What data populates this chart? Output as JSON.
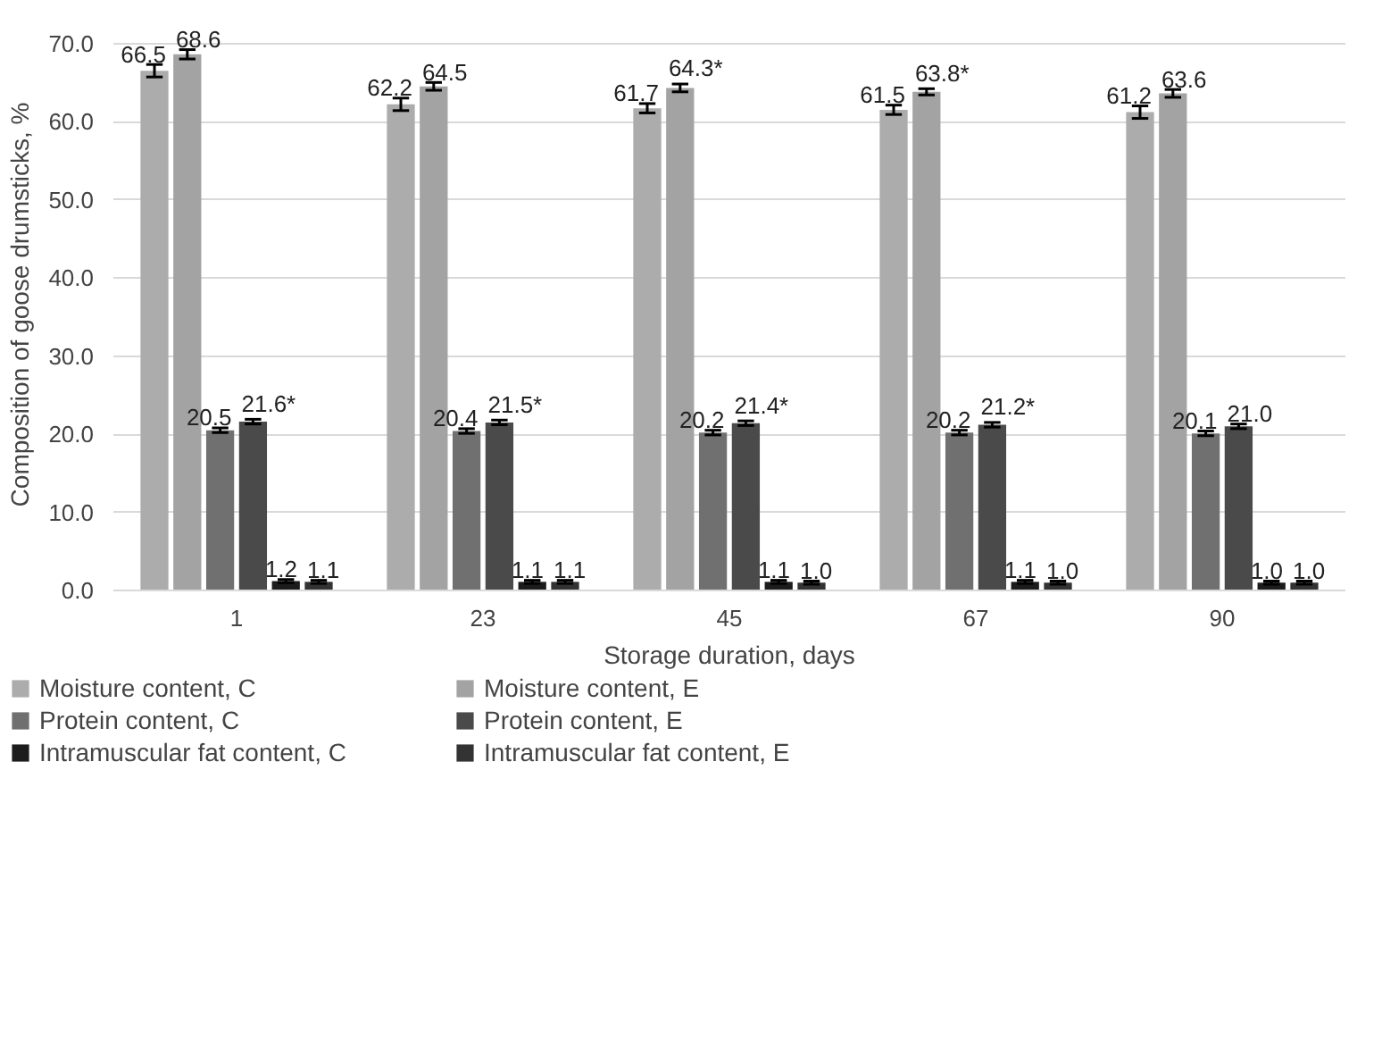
{
  "chart_data": {
    "type": "bar",
    "xlabel": "Storage duration, days",
    "ylabel": "Composition of goose drumsticks, %",
    "categories": [
      "1",
      "23",
      "45",
      "67",
      "90"
    ],
    "series": [
      {
        "name": "Moisture content, C",
        "color": "#acacac",
        "values": [
          66.5,
          62.2,
          61.7,
          61.5,
          61.2
        ],
        "errors": [
          0.8,
          0.8,
          0.6,
          0.6,
          0.8
        ],
        "value_labels": [
          "66.5",
          "62.2",
          "61.7",
          "61.5",
          "61.2"
        ]
      },
      {
        "name": "Moisture content, E",
        "color": "#a3a3a3",
        "values": [
          68.6,
          64.5,
          64.3,
          63.8,
          63.6
        ],
        "errors": [
          0.6,
          0.5,
          0.5,
          0.4,
          0.5
        ],
        "value_labels": [
          "68.6",
          "64.5",
          "64.3*",
          "63.8*",
          "63.6"
        ]
      },
      {
        "name": "Protein content, C",
        "color": "#707070",
        "values": [
          20.5,
          20.4,
          20.2,
          20.2,
          20.1
        ],
        "errors": [
          0.3,
          0.3,
          0.3,
          0.3,
          0.3
        ],
        "value_labels": [
          "20.5",
          "20.4",
          "20.2",
          "20.2",
          "20.1"
        ]
      },
      {
        "name": "Protein content, E",
        "color": "#4a4a4a",
        "values": [
          21.6,
          21.5,
          21.4,
          21.2,
          21.0
        ],
        "errors": [
          0.3,
          0.3,
          0.3,
          0.3,
          0.3
        ],
        "value_labels": [
          "21.6*",
          "21.5*",
          "21.4*",
          "21.2*",
          "21.0"
        ]
      },
      {
        "name": "Intramuscular fat content, C",
        "color": "#1c1c1c",
        "values": [
          1.2,
          1.1,
          1.1,
          1.1,
          1.0
        ],
        "errors": [
          0.2,
          0.2,
          0.2,
          0.2,
          0.2
        ],
        "value_labels": [
          "1.2",
          "1.1",
          "1.1",
          "1.1",
          "1.0"
        ]
      },
      {
        "name": "Intramuscular fat content, E",
        "color": "#333333",
        "values": [
          1.1,
          1.1,
          1.0,
          1.0,
          1.0
        ],
        "errors": [
          0.2,
          0.2,
          0.2,
          0.2,
          0.2
        ],
        "value_labels": [
          "1.1",
          "1.1",
          "1.0",
          "1.0",
          "1.0"
        ]
      }
    ],
    "ylim": [
      0,
      70
    ],
    "yticks": [
      {
        "value": 0,
        "label": "0.0"
      },
      {
        "value": 10,
        "label": "10.0"
      },
      {
        "value": 20,
        "label": "20.0"
      },
      {
        "value": 30,
        "label": "30.0"
      },
      {
        "value": 40,
        "label": "40.0"
      },
      {
        "value": 50,
        "label": "50.0"
      },
      {
        "value": 60,
        "label": "60.0"
      },
      {
        "value": 70,
        "label": "70.0"
      }
    ],
    "grid": "y",
    "legend": "bottom"
  }
}
